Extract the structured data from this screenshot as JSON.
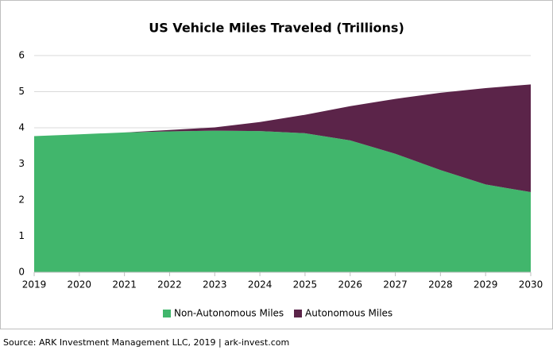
{
  "chart_data": {
    "type": "stacked_area",
    "title": "US Vehicle Miles Traveled (Trillions)",
    "x": [
      2019,
      2020,
      2021,
      2022,
      2023,
      2024,
      2025,
      2026,
      2027,
      2028,
      2029,
      2030
    ],
    "series": [
      {
        "name": "Non-Autonomous Miles",
        "color": "#41b66c",
        "values": [
          3.77,
          3.82,
          3.87,
          3.9,
          3.92,
          3.91,
          3.85,
          3.65,
          3.28,
          2.83,
          2.43,
          2.22
        ]
      },
      {
        "name": "Autonomous Miles",
        "color": "#5b2449",
        "values": [
          0,
          0,
          0,
          0.04,
          0.09,
          0.25,
          0.51,
          0.95,
          1.52,
          2.14,
          2.67,
          2.98
        ]
      }
    ],
    "xlim": [
      2019,
      2030
    ],
    "xticks": [
      2019,
      2020,
      2021,
      2022,
      2023,
      2024,
      2025,
      2026,
      2027,
      2028,
      2029,
      2030
    ],
    "ylim": [
      0,
      6
    ],
    "yticks": [
      0,
      1,
      2,
      3,
      4,
      5,
      6
    ],
    "grid": true,
    "legend": "bottom",
    "source": "Source: ARK Investment Management LLC, 2019 | ark-invest.com"
  }
}
